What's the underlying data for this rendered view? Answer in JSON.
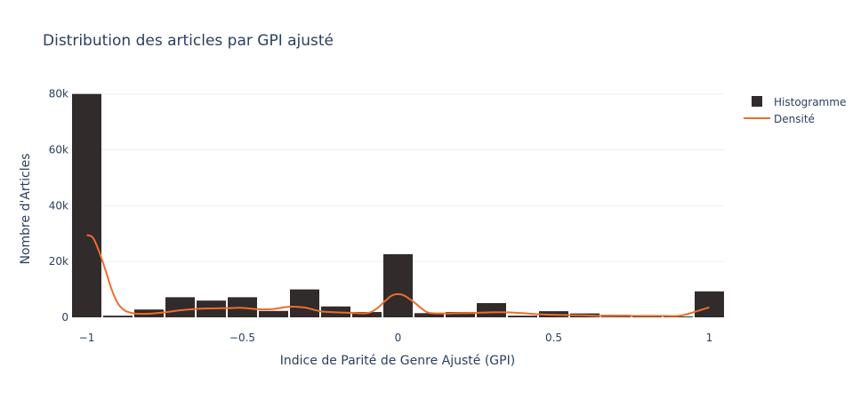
{
  "chart_data": {
    "type": "bar",
    "title": "Distribution des articles par GPI ajusté",
    "xlabel": "Indice de Parité de Genre Ajusté (GPI)",
    "ylabel": "Nombre d'Articles",
    "xlim": [
      -1.05,
      1.05
    ],
    "ylim": [
      0,
      85000
    ],
    "grid": true,
    "legend_position": "top-right",
    "x_ticks": [
      {
        "value": -1,
        "label": "−1"
      },
      {
        "value": -0.5,
        "label": "−0.5"
      },
      {
        "value": 0,
        "label": "0"
      },
      {
        "value": 0.5,
        "label": "0.5"
      },
      {
        "value": 1,
        "label": "1"
      }
    ],
    "y_ticks": [
      {
        "value": 0,
        "label": "0"
      },
      {
        "value": 20000,
        "label": "20k"
      },
      {
        "value": 40000,
        "label": "40k"
      },
      {
        "value": 60000,
        "label": "60k"
      },
      {
        "value": 80000,
        "label": "80k"
      }
    ],
    "bin_width": 0.1,
    "series": [
      {
        "name": "Histogramme",
        "type": "bar",
        "color": "#312b2b",
        "x": [
          -1.0,
          -0.9,
          -0.8,
          -0.7,
          -0.6,
          -0.5,
          -0.4,
          -0.3,
          -0.2,
          -0.1,
          0.0,
          0.1,
          0.2,
          0.3,
          0.4,
          0.5,
          0.6,
          0.7,
          0.8,
          0.9,
          1.0
        ],
        "values": [
          80000,
          600,
          2800,
          7200,
          6000,
          7200,
          2300,
          10000,
          3900,
          1900,
          22600,
          1500,
          1900,
          5100,
          600,
          2200,
          1400,
          900,
          400,
          300,
          9300
        ]
      },
      {
        "name": "Densité",
        "type": "line",
        "color": "#ef6c2d",
        "x": [
          -1.0,
          -0.98,
          -0.96,
          -0.94,
          -0.92,
          -0.9,
          -0.88,
          -0.86,
          -0.84,
          -0.8,
          -0.75,
          -0.7,
          -0.65,
          -0.6,
          -0.55,
          -0.5,
          -0.45,
          -0.4,
          -0.35,
          -0.3,
          -0.25,
          -0.2,
          -0.15,
          -0.1,
          -0.07,
          -0.04,
          -0.02,
          0.0,
          0.02,
          0.05,
          0.08,
          0.1,
          0.15,
          0.2,
          0.25,
          0.3,
          0.35,
          0.4,
          0.45,
          0.5,
          0.55,
          0.6,
          0.65,
          0.7,
          0.75,
          0.8,
          0.85,
          0.9,
          0.93,
          0.96,
          1.0
        ],
        "values": [
          29500,
          28500,
          23500,
          17000,
          10000,
          5000,
          2600,
          1700,
          1300,
          1300,
          1800,
          2500,
          3000,
          3200,
          3300,
          3400,
          2900,
          3000,
          3800,
          3500,
          2200,
          1800,
          1600,
          1500,
          3000,
          6000,
          7800,
          8300,
          7800,
          5500,
          2800,
          1600,
          1400,
          1500,
          1600,
          1800,
          1800,
          1500,
          1100,
          900,
          800,
          700,
          500,
          500,
          500,
          500,
          500,
          500,
          1200,
          2200,
          3600
        ]
      }
    ]
  }
}
